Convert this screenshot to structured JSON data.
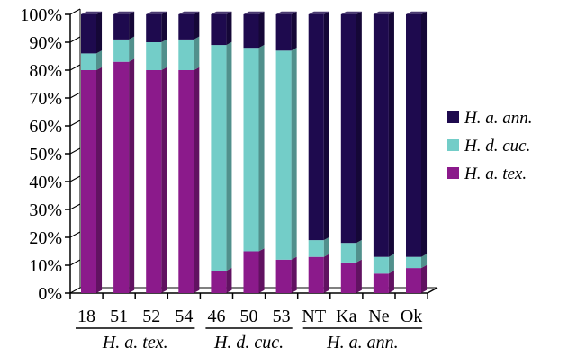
{
  "chart_data": {
    "type": "bar",
    "stacked": true,
    "percent_stacked": true,
    "categories": [
      "18",
      "51",
      "52",
      "54",
      "46",
      "50",
      "53",
      "NT",
      "Ka",
      "Ne",
      "Ok"
    ],
    "groups": [
      {
        "label": "H. a. tex.",
        "categories": [
          "18",
          "51",
          "52",
          "54"
        ]
      },
      {
        "label": "H. d. cuc.",
        "categories": [
          "46",
          "50",
          "53"
        ]
      },
      {
        "label": "H. a. ann.",
        "categories": [
          "NT",
          "Ka",
          "Ne",
          "Ok"
        ]
      }
    ],
    "series": [
      {
        "name": "H. a. tex.",
        "color": "#8b1a8b",
        "values": [
          80,
          83,
          80,
          80,
          8,
          15,
          12,
          13,
          11,
          7,
          9
        ]
      },
      {
        "name": "H. d. cuc.",
        "color": "#73cdc8",
        "values": [
          6,
          8,
          10,
          11,
          81,
          73,
          75,
          6,
          7,
          6,
          4
        ]
      },
      {
        "name": "H. a. ann.",
        "color": "#1e0a4e",
        "values": [
          14,
          9,
          10,
          9,
          11,
          12,
          13,
          81,
          82,
          87,
          87
        ]
      }
    ],
    "legend_order": [
      "H. a. ann.",
      "H. d. cuc.",
      "H. a. tex."
    ],
    "yticks": [
      "0%",
      "10%",
      "20%",
      "30%",
      "40%",
      "50%",
      "60%",
      "70%",
      "80%",
      "90%",
      "100%"
    ],
    "ylim": [
      0,
      100
    ],
    "grid": false,
    "legend_position": "right"
  }
}
